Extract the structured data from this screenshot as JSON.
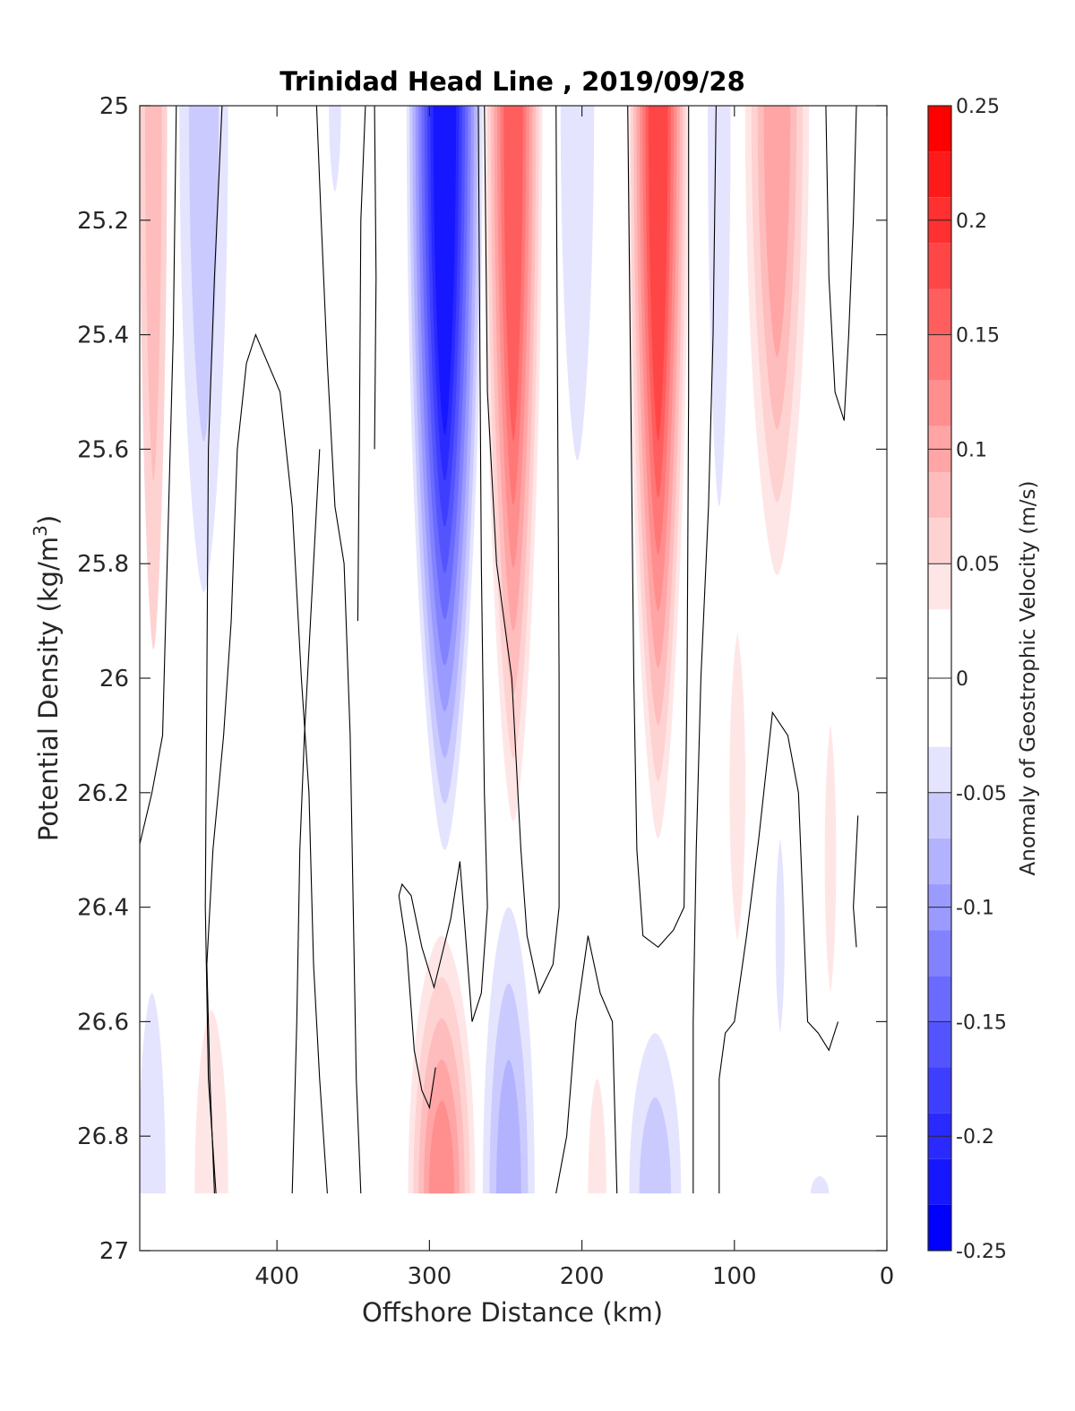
{
  "chart_data": {
    "type": "contour",
    "title": "Trinidad Head Line , 2019/09/28",
    "xlabel": "Offshore Distance (km)",
    "ylabel_main": "Potential Density (kg/m",
    "ylabel_sup": "3",
    "ylabel_close": ")",
    "x_range": [
      490,
      0
    ],
    "y_range": [
      25,
      27
    ],
    "y_reversed": true,
    "x_ticks": [
      {
        "value": 400,
        "label": "400"
      },
      {
        "value": 300,
        "label": "300"
      },
      {
        "value": 200,
        "label": "200"
      },
      {
        "value": 100,
        "label": "100"
      },
      {
        "value": 0,
        "label": "0"
      }
    ],
    "y_ticks": [
      {
        "value": 25.0,
        "label": "25"
      },
      {
        "value": 25.2,
        "label": "25.2"
      },
      {
        "value": 25.4,
        "label": "25.4"
      },
      {
        "value": 25.6,
        "label": "25.6"
      },
      {
        "value": 25.8,
        "label": "25.8"
      },
      {
        "value": 26.0,
        "label": "26"
      },
      {
        "value": 26.2,
        "label": "26.2"
      },
      {
        "value": 26.4,
        "label": "26.4"
      },
      {
        "value": 26.6,
        "label": "26.6"
      },
      {
        "value": 26.8,
        "label": "26.8"
      },
      {
        "value": 27.0,
        "label": "27"
      }
    ],
    "data_bottom_density": 26.9,
    "colorbar": {
      "label": "Anomaly of Geostrophic Velocity (m/s)",
      "range": [
        -0.25,
        0.25
      ],
      "ticks": [
        {
          "value": 0.25,
          "label": "0.25"
        },
        {
          "value": 0.2,
          "label": "0.2"
        },
        {
          "value": 0.15,
          "label": "0.15"
        },
        {
          "value": 0.1,
          "label": "0.1"
        },
        {
          "value": 0.05,
          "label": "0.05"
        },
        {
          "value": 0,
          "label": "0"
        },
        {
          "value": -0.05,
          "label": "-0.05"
        },
        {
          "value": -0.1,
          "label": "-0.1"
        },
        {
          "value": -0.15,
          "label": "-0.15"
        },
        {
          "value": -0.2,
          "label": "-0.2"
        },
        {
          "value": -0.25,
          "label": "-0.25"
        }
      ],
      "bands": [
        {
          "lo": 0.23,
          "hi": 0.25,
          "color": "#ff0000"
        },
        {
          "lo": 0.21,
          "hi": 0.23,
          "color": "#ff1a1a"
        },
        {
          "lo": 0.19,
          "hi": 0.21,
          "color": "#ff3030"
        },
        {
          "lo": 0.17,
          "hi": 0.19,
          "color": "#ff4646"
        },
        {
          "lo": 0.15,
          "hi": 0.17,
          "color": "#ff5e5e"
        },
        {
          "lo": 0.13,
          "hi": 0.15,
          "color": "#ff7777"
        },
        {
          "lo": 0.11,
          "hi": 0.13,
          "color": "#ff8e8e"
        },
        {
          "lo": 0.09,
          "hi": 0.11,
          "color": "#ffa5a5"
        },
        {
          "lo": 0.07,
          "hi": 0.09,
          "color": "#ffbcbc"
        },
        {
          "lo": 0.05,
          "hi": 0.07,
          "color": "#ffd2d2"
        },
        {
          "lo": 0.03,
          "hi": 0.05,
          "color": "#ffe6e6"
        },
        {
          "lo": -0.03,
          "hi": 0.03,
          "color": "#ffffff"
        },
        {
          "lo": -0.05,
          "hi": -0.03,
          "color": "#e4e4ff"
        },
        {
          "lo": -0.07,
          "hi": -0.05,
          "color": "#cacaff"
        },
        {
          "lo": -0.09,
          "hi": -0.07,
          "color": "#b2b2ff"
        },
        {
          "lo": -0.11,
          "hi": -0.09,
          "color": "#9a9aff"
        },
        {
          "lo": -0.13,
          "hi": -0.11,
          "color": "#8282ff"
        },
        {
          "lo": -0.15,
          "hi": -0.13,
          "color": "#6a6aff"
        },
        {
          "lo": -0.17,
          "hi": -0.15,
          "color": "#5454ff"
        },
        {
          "lo": -0.19,
          "hi": -0.17,
          "color": "#3e3eff"
        },
        {
          "lo": -0.21,
          "hi": -0.19,
          "color": "#2a2aff"
        },
        {
          "lo": -0.23,
          "hi": -0.21,
          "color": "#1616ff"
        },
        {
          "lo": -0.25,
          "hi": -0.23,
          "color": "#0000ff"
        }
      ]
    },
    "anomaly_features": [
      {
        "id": "red-edge-top",
        "sign": "positive",
        "center_km": 481,
        "width_km": 18,
        "density_top": 25.0,
        "density_bottom": 25.95,
        "levels": [
          0.05,
          0.07
        ]
      },
      {
        "id": "blue-460-upper",
        "sign": "negative",
        "center_km": 448,
        "width_km": 32,
        "density_top": 25.0,
        "density_bottom": 25.85,
        "levels": [
          -0.04,
          -0.055
        ]
      },
      {
        "id": "blue-360-small",
        "sign": "negative",
        "center_km": 362,
        "width_km": 8,
        "density_top": 25.0,
        "density_bottom": 25.15,
        "levels": [
          -0.04
        ]
      },
      {
        "id": "blue-core-290",
        "sign": "negative",
        "center_km": 290,
        "width_km": 50,
        "density_top": 25.0,
        "density_bottom": 26.3,
        "levels": [
          -0.04,
          -0.06,
          -0.08,
          -0.1,
          -0.12,
          -0.14,
          -0.16,
          -0.18,
          -0.2,
          -0.22
        ]
      },
      {
        "id": "red-core-245",
        "sign": "positive",
        "center_km": 245,
        "width_km": 38,
        "density_top": 25.0,
        "density_bottom": 26.25,
        "levels": [
          0.04,
          0.06,
          0.08,
          0.1,
          0.12,
          0.14,
          0.16
        ]
      },
      {
        "id": "blue-200-upper",
        "sign": "negative",
        "center_km": 203,
        "width_km": 22,
        "density_top": 25.0,
        "density_bottom": 25.62,
        "levels": [
          -0.04
        ]
      },
      {
        "id": "red-core-150",
        "sign": "positive",
        "center_km": 150,
        "width_km": 40,
        "density_top": 25.0,
        "density_bottom": 26.28,
        "levels": [
          0.04,
          0.06,
          0.08,
          0.1,
          0.12,
          0.14,
          0.16,
          0.18
        ]
      },
      {
        "id": "blue-110-upper",
        "sign": "negative",
        "center_km": 110,
        "width_km": 15,
        "density_top": 25.0,
        "density_bottom": 25.7,
        "levels": [
          -0.04
        ]
      },
      {
        "id": "red-70-upper",
        "sign": "positive",
        "center_km": 72,
        "width_km": 42,
        "density_top": 25.0,
        "density_bottom": 25.82,
        "levels": [
          0.04,
          0.06,
          0.08,
          0.1
        ]
      },
      {
        "id": "red-100-mid",
        "sign": "positive",
        "center_km": 98,
        "width_km": 14,
        "density_top": 25.92,
        "density_bottom": 26.46,
        "levels": [
          0.04
        ]
      },
      {
        "id": "red-40-mid",
        "sign": "positive",
        "center_km": 37,
        "width_km": 10,
        "density_top": 26.08,
        "density_bottom": 26.55,
        "levels": [
          0.04
        ]
      },
      {
        "id": "blue-70-mid",
        "sign": "negative",
        "center_km": 70,
        "width_km": 8,
        "density_top": 26.28,
        "density_bottom": 26.62,
        "levels": [
          -0.04
        ]
      },
      {
        "id": "blue-480-deep",
        "sign": "negative",
        "center_km": 482,
        "width_km": 18,
        "density_top": 26.55,
        "density_bottom": 26.9,
        "levels": [
          -0.04
        ]
      },
      {
        "id": "red-450-deep",
        "sign": "positive",
        "center_km": 443,
        "width_km": 22,
        "density_top": 26.58,
        "density_bottom": 26.9,
        "levels": [
          0.04
        ]
      },
      {
        "id": "red-290-deep",
        "sign": "positive",
        "center_km": 292,
        "width_km": 44,
        "density_top": 26.45,
        "density_bottom": 26.9,
        "levels": [
          0.04,
          0.06,
          0.08,
          0.1,
          0.12
        ]
      },
      {
        "id": "blue-250-deep",
        "sign": "negative",
        "center_km": 248,
        "width_km": 34,
        "density_top": 26.4,
        "density_bottom": 26.9,
        "levels": [
          -0.04,
          -0.06,
          -0.08
        ]
      },
      {
        "id": "red-190-deep",
        "sign": "positive",
        "center_km": 190,
        "width_km": 12,
        "density_top": 26.7,
        "density_bottom": 26.9,
        "levels": [
          0.04
        ]
      },
      {
        "id": "blue-150-deep",
        "sign": "negative",
        "center_km": 152,
        "width_km": 34,
        "density_top": 26.62,
        "density_bottom": 26.9,
        "levels": [
          -0.04,
          -0.06
        ]
      },
      {
        "id": "blue-45-deep",
        "sign": "negative",
        "center_km": 44,
        "width_km": 12,
        "density_top": 26.87,
        "density_bottom": 26.9,
        "levels": [
          -0.04
        ]
      }
    ],
    "zero_contours": [
      {
        "id": "zc-1",
        "points": [
          [
            490,
            26.29
          ],
          [
            482,
            26.2
          ],
          [
            475,
            26.1
          ],
          [
            472,
            25.8
          ],
          [
            468,
            25.4
          ],
          [
            466,
            25.0
          ]
        ]
      },
      {
        "id": "zc-2",
        "points": [
          [
            436,
            25.0
          ],
          [
            441,
            25.3
          ],
          [
            445,
            25.6
          ],
          [
            446,
            26.0
          ],
          [
            447,
            26.4
          ],
          [
            445,
            26.7
          ],
          [
            440,
            26.9
          ]
        ]
      },
      {
        "id": "zc-3",
        "points": [
          [
            367,
            26.9
          ],
          [
            372,
            26.7
          ],
          [
            376,
            26.5
          ],
          [
            379,
            26.2
          ],
          [
            384,
            26.0
          ],
          [
            390,
            25.7
          ],
          [
            398,
            25.5
          ],
          [
            414,
            25.4
          ],
          [
            420,
            25.45
          ],
          [
            426,
            25.6
          ],
          [
            430,
            25.9
          ],
          [
            435,
            26.1
          ],
          [
            442,
            26.3
          ],
          [
            446,
            26.5
          ],
          [
            444,
            26.7
          ],
          [
            441,
            26.9
          ]
        ]
      },
      {
        "id": "zc-4",
        "points": [
          [
            345,
            26.9
          ],
          [
            348,
            26.7
          ],
          [
            350,
            26.4
          ],
          [
            352,
            26.1
          ],
          [
            356,
            25.8
          ],
          [
            362,
            25.7
          ],
          [
            367,
            25.45
          ],
          [
            371,
            25.2
          ],
          [
            374,
            25.0
          ]
        ]
      },
      {
        "id": "zc-5",
        "points": [
          [
            342,
            25.0
          ],
          [
            345,
            25.2
          ],
          [
            346,
            25.6
          ],
          [
            347,
            25.9
          ]
        ]
      },
      {
        "id": "zc-6",
        "points": [
          [
            372,
            25.6
          ],
          [
            376,
            25.8
          ],
          [
            380,
            26.0
          ],
          [
            382,
            26.1
          ],
          [
            385,
            26.3
          ],
          [
            387,
            26.6
          ],
          [
            390,
            26.9
          ]
        ]
      },
      {
        "id": "zc-7",
        "points": [
          [
            336,
            25.6
          ],
          [
            335,
            25.3
          ],
          [
            336,
            25.0
          ]
        ]
      },
      {
        "id": "zc-8",
        "points": [
          [
            268,
            25.0
          ],
          [
            267,
            25.4
          ],
          [
            266,
            25.8
          ],
          [
            264,
            26.2
          ],
          [
            262,
            26.4
          ],
          [
            266,
            26.55
          ],
          [
            272,
            26.6
          ],
          [
            280,
            26.32
          ],
          [
            286,
            26.42
          ],
          [
            297,
            26.54
          ],
          [
            305,
            26.47
          ],
          [
            312,
            26.38
          ],
          [
            318,
            26.36
          ],
          [
            320,
            26.38
          ],
          [
            315,
            26.47
          ],
          [
            310,
            26.65
          ],
          [
            305,
            26.72
          ],
          [
            300,
            26.75
          ],
          [
            296,
            26.68
          ]
        ]
      },
      {
        "id": "zc-9",
        "points": [
          [
            217,
            25.0
          ],
          [
            216,
            25.5
          ],
          [
            215,
            26.0
          ],
          [
            215,
            26.4
          ],
          [
            219,
            26.5
          ],
          [
            228,
            26.55
          ],
          [
            236,
            26.45
          ],
          [
            240,
            26.3
          ],
          [
            246,
            26.0
          ],
          [
            256,
            25.8
          ],
          [
            262,
            25.5
          ],
          [
            264,
            25.0
          ]
        ]
      },
      {
        "id": "zc-10",
        "points": [
          [
            217,
            26.9
          ],
          [
            210,
            26.8
          ],
          [
            204,
            26.6
          ],
          [
            196,
            26.45
          ],
          [
            188,
            26.55
          ],
          [
            180,
            26.6
          ],
          [
            177,
            26.9
          ]
        ]
      },
      {
        "id": "zc-11",
        "points": [
          [
            170,
            25.0
          ],
          [
            168,
            25.5
          ],
          [
            166,
            26.0
          ],
          [
            164,
            26.3
          ],
          [
            160,
            26.45
          ],
          [
            150,
            26.47
          ],
          [
            140,
            26.44
          ],
          [
            133,
            26.4
          ],
          [
            131,
            26.0
          ],
          [
            130,
            25.5
          ],
          [
            130,
            25.0
          ]
        ]
      },
      {
        "id": "zc-12",
        "points": [
          [
            127,
            26.9
          ],
          [
            127,
            26.6
          ],
          [
            125,
            26.3
          ],
          [
            122,
            26.0
          ],
          [
            117,
            25.7
          ],
          [
            114,
            25.4
          ],
          [
            112,
            25.0
          ]
        ]
      },
      {
        "id": "zc-13",
        "points": [
          [
            110,
            26.9
          ],
          [
            110,
            26.7
          ],
          [
            106,
            26.62
          ],
          [
            100,
            26.6
          ],
          [
            92,
            26.45
          ],
          [
            84,
            26.28
          ],
          [
            75,
            26.06
          ],
          [
            65,
            26.1
          ],
          [
            58,
            26.2
          ],
          [
            52,
            26.6
          ],
          [
            45,
            26.62
          ],
          [
            38,
            26.65
          ],
          [
            32,
            26.6
          ]
        ]
      },
      {
        "id": "zc-14",
        "points": [
          [
            40,
            25.0
          ],
          [
            38,
            25.3
          ],
          [
            34,
            25.5
          ],
          [
            28,
            25.55
          ],
          [
            25,
            25.4
          ],
          [
            22,
            25.2
          ],
          [
            20,
            25.0
          ]
        ]
      },
      {
        "id": "zc-15",
        "points": [
          [
            19,
            26.24
          ],
          [
            22,
            26.4
          ],
          [
            20,
            26.47
          ]
        ]
      }
    ]
  }
}
